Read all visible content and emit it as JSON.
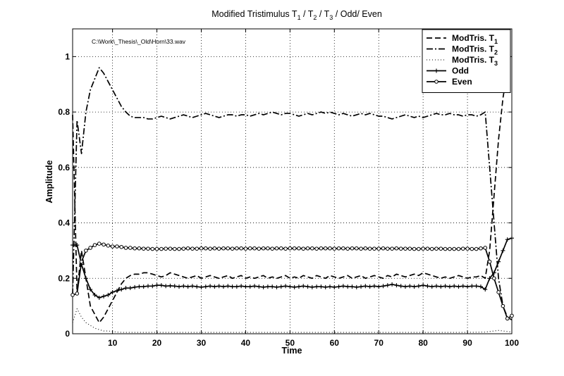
{
  "chart_data": {
    "type": "line",
    "title": "Modified Tristimulus T1 / T2 / T3 / Odd/ Even",
    "title_parts": {
      "t_prefix": "Modified Tristimulus T",
      "sub1": "1",
      "sep1": " / T",
      "sub2": "2",
      "sep2": " / T",
      "sub3": "3",
      "suffix": " / Odd/ Even"
    },
    "annotation": "C:\\Work\\_Thesis\\_Old\\Horn\\33.wav",
    "xlabel": "Time",
    "ylabel": "Amplitude",
    "xlim": [
      1,
      100
    ],
    "ylim": [
      0,
      1.1
    ],
    "xticks": [
      10,
      20,
      30,
      40,
      50,
      60,
      70,
      80,
      90,
      100
    ],
    "yticks": [
      0,
      0.2,
      0.4,
      0.6,
      0.8,
      1
    ],
    "ytick_labels": [
      "0",
      "0.2",
      "0.4",
      "0.6",
      "0.8",
      "1"
    ],
    "grid": true,
    "legend_position": "top-right",
    "series": [
      {
        "name": "ModTris. T1",
        "legend_main": "ModTris. T",
        "legend_sub": "1",
        "style": "dashed",
        "marker": "none",
        "x": [
          1,
          2,
          3,
          4,
          5,
          6,
          7,
          8,
          9,
          10,
          11,
          12,
          13,
          14,
          15,
          16,
          17,
          18,
          19,
          20,
          21,
          22,
          23,
          24,
          25,
          26,
          27,
          28,
          29,
          30,
          31,
          32,
          33,
          34,
          35,
          36,
          37,
          38,
          39,
          40,
          41,
          42,
          43,
          44,
          45,
          46,
          47,
          48,
          49,
          50,
          51,
          52,
          53,
          54,
          55,
          56,
          57,
          58,
          59,
          60,
          61,
          62,
          63,
          64,
          65,
          66,
          67,
          68,
          69,
          70,
          71,
          72,
          73,
          74,
          75,
          76,
          77,
          78,
          79,
          80,
          81,
          82,
          83,
          84,
          85,
          86,
          87,
          88,
          89,
          90,
          91,
          92,
          93,
          94,
          95,
          96,
          97,
          98,
          99,
          100
        ],
        "y": [
          0.79,
          0.15,
          0.3,
          0.2,
          0.1,
          0.07,
          0.04,
          0.06,
          0.09,
          0.12,
          0.15,
          0.18,
          0.2,
          0.21,
          0.215,
          0.215,
          0.22,
          0.22,
          0.215,
          0.21,
          0.205,
          0.21,
          0.22,
          0.215,
          0.21,
          0.205,
          0.2,
          0.205,
          0.21,
          0.2,
          0.205,
          0.21,
          0.205,
          0.2,
          0.205,
          0.21,
          0.2,
          0.205,
          0.21,
          0.2,
          0.205,
          0.2,
          0.205,
          0.21,
          0.2,
          0.205,
          0.2,
          0.205,
          0.21,
          0.2,
          0.205,
          0.2,
          0.21,
          0.205,
          0.2,
          0.21,
          0.205,
          0.2,
          0.21,
          0.205,
          0.2,
          0.205,
          0.21,
          0.2,
          0.205,
          0.21,
          0.2,
          0.205,
          0.21,
          0.205,
          0.2,
          0.21,
          0.205,
          0.215,
          0.21,
          0.205,
          0.21,
          0.215,
          0.21,
          0.22,
          0.215,
          0.21,
          0.205,
          0.2,
          0.205,
          0.2,
          0.205,
          0.21,
          0.205,
          0.2,
          0.205,
          0.205,
          0.21,
          0.2,
          0.3,
          0.5,
          0.7,
          0.85,
          0.95,
          0.96
        ]
      },
      {
        "name": "ModTris. T2",
        "legend_main": "ModTris. T",
        "legend_sub": "2",
        "style": "dashdot",
        "marker": "none",
        "x": [
          1,
          2,
          3,
          4,
          5,
          6,
          7,
          8,
          9,
          10,
          11,
          12,
          13,
          14,
          15,
          16,
          17,
          18,
          19,
          20,
          21,
          22,
          23,
          24,
          25,
          26,
          27,
          28,
          29,
          30,
          31,
          32,
          33,
          34,
          35,
          36,
          37,
          38,
          39,
          40,
          41,
          42,
          43,
          44,
          45,
          46,
          47,
          48,
          49,
          50,
          51,
          52,
          53,
          54,
          55,
          56,
          57,
          58,
          59,
          60,
          61,
          62,
          63,
          64,
          65,
          66,
          67,
          68,
          69,
          70,
          71,
          72,
          73,
          74,
          75,
          76,
          77,
          78,
          79,
          80,
          81,
          82,
          83,
          84,
          85,
          86,
          87,
          88,
          89,
          90,
          91,
          92,
          93,
          94,
          95,
          96,
          97,
          98,
          99,
          100
        ],
        "y": [
          0.14,
          0.77,
          0.65,
          0.8,
          0.88,
          0.92,
          0.96,
          0.94,
          0.91,
          0.88,
          0.85,
          0.82,
          0.8,
          0.785,
          0.78,
          0.78,
          0.78,
          0.775,
          0.775,
          0.78,
          0.785,
          0.78,
          0.775,
          0.78,
          0.785,
          0.79,
          0.785,
          0.78,
          0.785,
          0.79,
          0.795,
          0.79,
          0.785,
          0.78,
          0.785,
          0.79,
          0.79,
          0.785,
          0.79,
          0.79,
          0.785,
          0.79,
          0.795,
          0.79,
          0.795,
          0.8,
          0.795,
          0.79,
          0.795,
          0.795,
          0.79,
          0.785,
          0.79,
          0.795,
          0.79,
          0.795,
          0.8,
          0.795,
          0.8,
          0.795,
          0.79,
          0.795,
          0.79,
          0.785,
          0.79,
          0.795,
          0.79,
          0.795,
          0.79,
          0.785,
          0.785,
          0.78,
          0.775,
          0.78,
          0.785,
          0.79,
          0.785,
          0.78,
          0.785,
          0.78,
          0.785,
          0.79,
          0.795,
          0.79,
          0.79,
          0.795,
          0.79,
          0.79,
          0.785,
          0.79,
          0.79,
          0.785,
          0.79,
          0.8,
          0.6,
          0.4,
          0.2,
          0.1,
          0.06,
          0.05
        ]
      },
      {
        "name": "ModTris. T3",
        "legend_main": "ModTris. T",
        "legend_sub": "3",
        "style": "dotted",
        "marker": "none",
        "x": [
          1,
          2,
          3,
          4,
          5,
          6,
          7,
          8,
          9,
          10,
          11,
          12,
          13,
          14,
          15,
          16,
          17,
          18,
          19,
          20,
          25,
          30,
          35,
          40,
          45,
          50,
          55,
          60,
          65,
          70,
          75,
          80,
          85,
          90,
          94,
          95,
          96,
          97,
          98,
          99,
          100
        ],
        "y": [
          0.04,
          0.09,
          0.06,
          0.04,
          0.03,
          0.02,
          0.015,
          0.01,
          0.01,
          0.008,
          0.006,
          0.005,
          0.005,
          0.005,
          0.005,
          0.005,
          0.005,
          0.005,
          0.005,
          0.005,
          0.005,
          0.005,
          0.005,
          0.005,
          0.005,
          0.005,
          0.005,
          0.005,
          0.005,
          0.005,
          0.005,
          0.005,
          0.005,
          0.005,
          0.006,
          0.008,
          0.01,
          0.012,
          0.01,
          0.008,
          0.006
        ]
      },
      {
        "name": "Odd",
        "legend_main": "Odd",
        "legend_sub": "",
        "style": "solid",
        "marker": "plus",
        "x": [
          1,
          2,
          3,
          4,
          5,
          6,
          7,
          8,
          9,
          10,
          11,
          12,
          13,
          14,
          15,
          16,
          17,
          18,
          19,
          20,
          21,
          22,
          23,
          24,
          25,
          26,
          27,
          28,
          29,
          30,
          31,
          32,
          33,
          34,
          35,
          36,
          37,
          38,
          39,
          40,
          41,
          42,
          43,
          44,
          45,
          46,
          47,
          48,
          49,
          50,
          51,
          52,
          53,
          54,
          55,
          56,
          57,
          58,
          59,
          60,
          61,
          62,
          63,
          64,
          65,
          66,
          67,
          68,
          69,
          70,
          71,
          72,
          73,
          74,
          75,
          76,
          77,
          78,
          79,
          80,
          81,
          82,
          83,
          84,
          85,
          86,
          87,
          88,
          89,
          90,
          91,
          92,
          93,
          94,
          95,
          96,
          97,
          98,
          99,
          100
        ],
        "y": [
          0.32,
          0.32,
          0.25,
          0.2,
          0.16,
          0.14,
          0.13,
          0.135,
          0.14,
          0.15,
          0.155,
          0.16,
          0.165,
          0.165,
          0.168,
          0.17,
          0.17,
          0.172,
          0.172,
          0.175,
          0.175,
          0.172,
          0.173,
          0.172,
          0.17,
          0.172,
          0.17,
          0.172,
          0.17,
          0.168,
          0.17,
          0.172,
          0.17,
          0.172,
          0.17,
          0.172,
          0.17,
          0.17,
          0.172,
          0.17,
          0.17,
          0.172,
          0.17,
          0.168,
          0.17,
          0.17,
          0.168,
          0.17,
          0.172,
          0.17,
          0.168,
          0.17,
          0.172,
          0.17,
          0.168,
          0.17,
          0.17,
          0.168,
          0.17,
          0.168,
          0.17,
          0.172,
          0.17,
          0.17,
          0.168,
          0.17,
          0.172,
          0.17,
          0.172,
          0.17,
          0.172,
          0.175,
          0.178,
          0.175,
          0.172,
          0.17,
          0.172,
          0.17,
          0.172,
          0.175,
          0.172,
          0.17,
          0.172,
          0.17,
          0.172,
          0.17,
          0.172,
          0.17,
          0.172,
          0.17,
          0.172,
          0.172,
          0.17,
          0.16,
          0.2,
          0.22,
          0.26,
          0.3,
          0.34,
          0.345
        ]
      },
      {
        "name": "Even",
        "legend_main": "Even",
        "legend_sub": "",
        "style": "solid",
        "marker": "circle",
        "x": [
          1,
          2,
          3,
          4,
          5,
          6,
          7,
          8,
          9,
          10,
          11,
          12,
          13,
          14,
          15,
          16,
          17,
          18,
          19,
          20,
          21,
          22,
          23,
          24,
          25,
          26,
          27,
          28,
          29,
          30,
          31,
          32,
          33,
          34,
          35,
          36,
          37,
          38,
          39,
          40,
          41,
          42,
          43,
          44,
          45,
          46,
          47,
          48,
          49,
          50,
          51,
          52,
          53,
          54,
          55,
          56,
          57,
          58,
          59,
          60,
          61,
          62,
          63,
          64,
          65,
          66,
          67,
          68,
          69,
          70,
          71,
          72,
          73,
          74,
          75,
          76,
          77,
          78,
          79,
          80,
          81,
          82,
          83,
          84,
          85,
          86,
          87,
          88,
          89,
          90,
          91,
          92,
          93,
          94,
          95,
          96,
          97,
          98,
          99,
          100
        ],
        "y": [
          0.14,
          0.145,
          0.26,
          0.3,
          0.31,
          0.32,
          0.325,
          0.322,
          0.318,
          0.315,
          0.315,
          0.313,
          0.31,
          0.31,
          0.308,
          0.308,
          0.307,
          0.307,
          0.306,
          0.306,
          0.306,
          0.307,
          0.307,
          0.306,
          0.306,
          0.307,
          0.308,
          0.307,
          0.307,
          0.308,
          0.308,
          0.307,
          0.308,
          0.307,
          0.308,
          0.308,
          0.307,
          0.308,
          0.308,
          0.307,
          0.308,
          0.308,
          0.307,
          0.308,
          0.308,
          0.307,
          0.308,
          0.308,
          0.307,
          0.308,
          0.308,
          0.308,
          0.307,
          0.308,
          0.308,
          0.307,
          0.308,
          0.308,
          0.308,
          0.307,
          0.308,
          0.308,
          0.307,
          0.308,
          0.308,
          0.307,
          0.308,
          0.307,
          0.307,
          0.307,
          0.308,
          0.307,
          0.307,
          0.308,
          0.307,
          0.307,
          0.307,
          0.306,
          0.306,
          0.307,
          0.307,
          0.306,
          0.307,
          0.307,
          0.306,
          0.306,
          0.306,
          0.306,
          0.307,
          0.307,
          0.306,
          0.306,
          0.308,
          0.31,
          0.26,
          0.2,
          0.15,
          0.1,
          0.055,
          0.065
        ]
      }
    ]
  }
}
